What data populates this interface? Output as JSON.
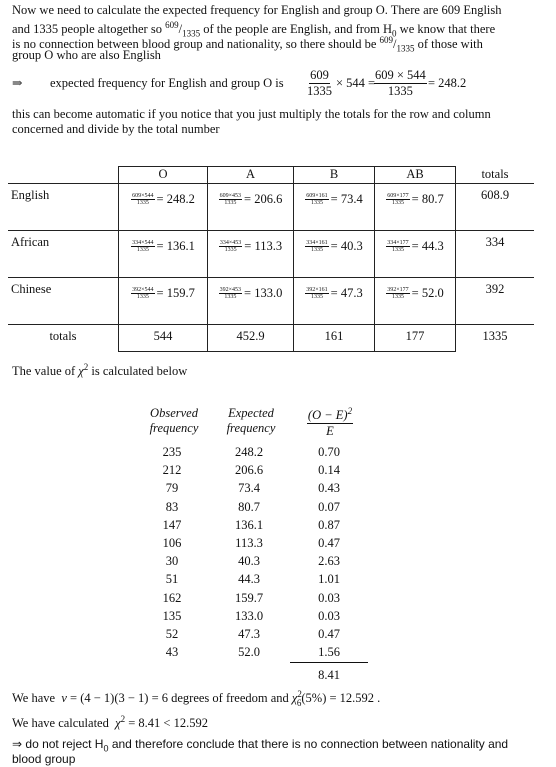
{
  "intro": {
    "line1": "Now we need to calculate the expected frequency for English and group O. There are 609 English",
    "line2a": "and 1335 people altogether so",
    "frac_num": "609",
    "frac_den": "1335",
    "line2b": "of the people are English, and from H",
    "line2_sub": "0",
    "line2c": "we know that there",
    "line3a": "is no connection between blood group and nationality, so there should be",
    "line3b": "of those with",
    "line4": "group O who are also English"
  },
  "expected_line": {
    "arrow": "⇒",
    "text": "expected frequency for English and group O is",
    "f1_num": "609",
    "f1_den": "1335",
    "times544": "× 544 =",
    "f2_num": "609 × 544",
    "f2_den": "1335",
    "result": "= 248.2"
  },
  "automatic": {
    "line1": "this can become automatic if you notice that you just multiply the totals for the row and column",
    "line2": "concerned and divide by the total number"
  },
  "table": {
    "headers": [
      "",
      "O",
      "A",
      "B",
      "AB",
      "totals"
    ],
    "rows": [
      {
        "label": "English",
        "cells": [
          {
            "num": "609×544",
            "den": "1335",
            "val": "= 248.2"
          },
          {
            "num": "609×453",
            "den": "1335",
            "val": "= 206.6"
          },
          {
            "num": "609×161",
            "den": "1335",
            "val": "= 73.4"
          },
          {
            "num": "609×177",
            "den": "1335",
            "val": "= 80.7"
          }
        ],
        "total": "608.9"
      },
      {
        "label": "African",
        "cells": [
          {
            "num": "334×544",
            "den": "1335",
            "val": "= 136.1"
          },
          {
            "num": "334×453",
            "den": "1335",
            "val": "= 113.3"
          },
          {
            "num": "334×161",
            "den": "1335",
            "val": "= 40.3"
          },
          {
            "num": "334×177",
            "den": "1335",
            "val": "= 44.3"
          }
        ],
        "total": "334"
      },
      {
        "label": "Chinese",
        "cells": [
          {
            "num": "392×544",
            "den": "1335",
            "val": "= 159.7"
          },
          {
            "num": "392×453",
            "den": "1335",
            "val": "= 133.0"
          },
          {
            "num": "392×161",
            "den": "1335",
            "val": "= 47.3"
          },
          {
            "num": "392×177",
            "den": "1335",
            "val": "= 52.0"
          }
        ],
        "total": "392"
      }
    ],
    "totals_row": [
      "totals",
      "544",
      "452.9",
      "161",
      "177",
      "1335"
    ]
  },
  "chi_intro": {
    "pre": "The value of",
    "chi": "χ",
    "sup": "2",
    "post": "is calculated below"
  },
  "chi_table": {
    "h_obs_1": "Observed",
    "h_obs_2": "frequency",
    "h_exp_1": "Expected",
    "h_exp_2": "frequency",
    "h_chi_num": "(O − E)",
    "h_chi_sup": "2",
    "h_chi_den": "E",
    "observed": [
      "235",
      "212",
      "79",
      "83",
      "147",
      "106",
      "30",
      "51",
      "162",
      "135",
      "52",
      "43"
    ],
    "expected": [
      "248.2",
      "206.6",
      "73.4",
      "80.7",
      "136.1",
      "113.3",
      "40.3",
      "44.3",
      "159.7",
      "133.0",
      "47.3",
      "52.0"
    ],
    "contrib": [
      "0.70",
      "0.14",
      "0.43",
      "0.07",
      "0.87",
      "0.47",
      "2.63",
      "1.01",
      "0.03",
      "0.03",
      "0.47",
      "1.56"
    ],
    "sum": "8.41"
  },
  "dof": {
    "pre": "We have",
    "nu": "ν",
    "expr": "= (4 − 1)(3 − 1) = 6  degrees of freedom  and",
    "chi": "χ",
    "sub": "6",
    "sup": "2",
    "crit": "(5%) = 12.592 ."
  },
  "calc": {
    "pre": "We have calculated",
    "chi": "χ",
    "sup": "2",
    "post": "= 8.41  < 12.592"
  },
  "conclusion": {
    "arrow": "⇒",
    "line1a": "do not reject H",
    "sub": "0",
    "line1b": "and therefore conclude that there is no connection between  nationality and",
    "line2": "blood group"
  }
}
